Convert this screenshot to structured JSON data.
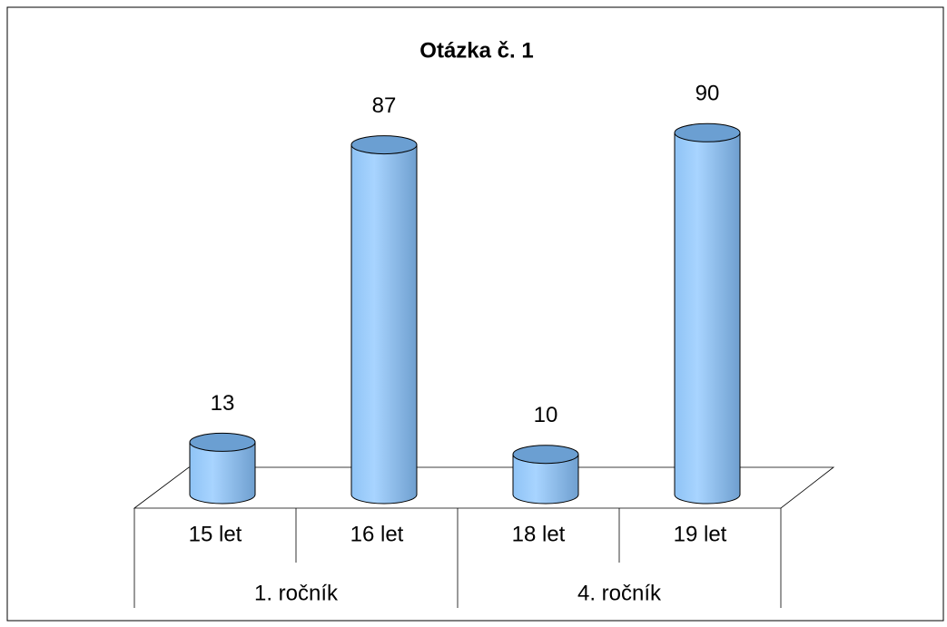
{
  "chart_data": {
    "type": "cylinder-bar",
    "title": "Otázka č. 1",
    "categories": [
      "15 let",
      "16 let",
      "18 let",
      "19 let"
    ],
    "groups": [
      "1. ročník",
      "4. ročník"
    ],
    "values": [
      13,
      87,
      10,
      90
    ],
    "color": "#99ccff"
  }
}
